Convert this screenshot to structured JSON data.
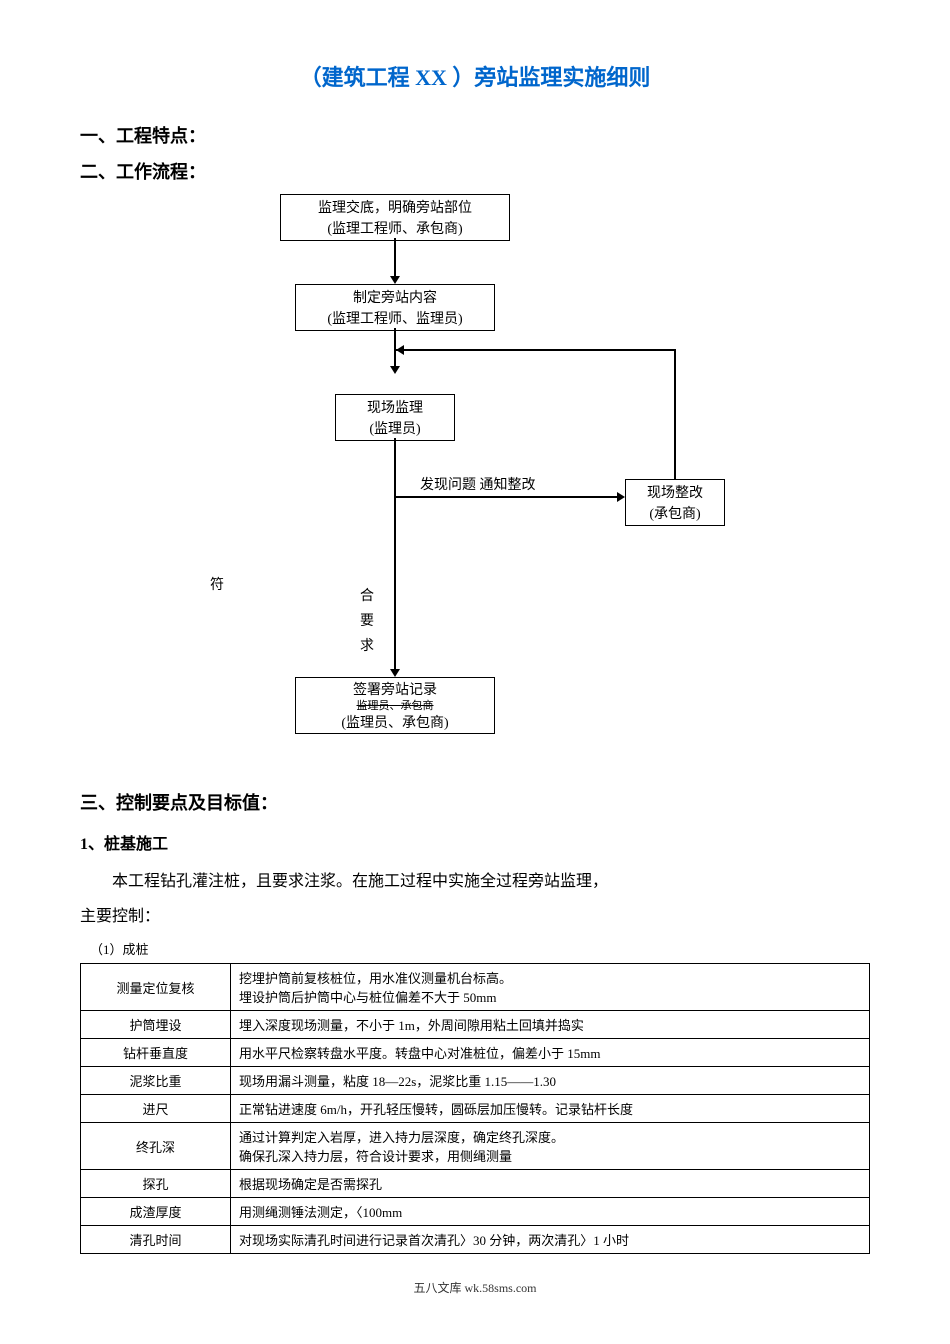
{
  "title": "（建筑工程 XX ）旁站监理实施细则",
  "title_color": "#0066cc",
  "section1": "一、工程特点：",
  "section2": "二、工作流程：",
  "flowchart": {
    "box1_top": "监理交底，明确旁站部位",
    "box1_sub": "(监理工程师、承包商)",
    "box2_top": "制定旁站内容",
    "box2_sub": "(监理工程师、监理员)",
    "box3_top": "现场监理",
    "box3_sub": "(监理员)",
    "problem_label": "发现问题 通知整改",
    "box4_top": "现场整改",
    "box4_sub": "(承包商)",
    "vertical_label": "符合要求",
    "box5_top": "签署旁站记录",
    "box5_mid": "监理员、承包商",
    "box5_sub": "(监理员、承包商)",
    "box_border_color": "#000000",
    "line_color": "#000000"
  },
  "section3": "三、控制要点及目标值：",
  "sub1": "1、桩基施工",
  "body1": "本工程钻孔灌注桩，且要求注浆。在施工过程中实施全过程旁站监理，",
  "body2": "主要控制：",
  "table_label": "（1）成桩",
  "table": {
    "rows": [
      [
        "测量定位复核",
        "挖埋护筒前复核桩位，用水准仪测量机台标高。\n埋设护筒后护筒中心与桩位偏差不大于 50mm"
      ],
      [
        "护筒埋设",
        "埋入深度现场测量，不小于 1m，外周间隙用粘土回填并捣实"
      ],
      [
        "钻杆垂直度",
        "用水平尺检察转盘水平度。转盘中心对准桩位，偏差小于 15mm"
      ],
      [
        "泥浆比重",
        "现场用漏斗测量，粘度 18—22s，泥浆比重 1.15——1.30"
      ],
      [
        "进尺",
        "正常钻进速度 6m/h，开孔轻压慢转，圆砾层加压慢转。记录钻杆长度"
      ],
      [
        "终孔深",
        "通过计算判定入岩厚，进入持力层深度，确定终孔深度。\n确保孔深入持力层，符合设计要求，用侧绳测量"
      ],
      [
        "探孔",
        "根据现场确定是否需探孔"
      ],
      [
        "成渣厚度",
        "用测绳测锤法测定，〈100mm"
      ],
      [
        "清孔时间",
        "对现场实际清孔时间进行记录首次清孔〉30 分钟，两次清孔〉1 小时"
      ]
    ]
  },
  "footer": "五八文库 wk.58sms.com"
}
